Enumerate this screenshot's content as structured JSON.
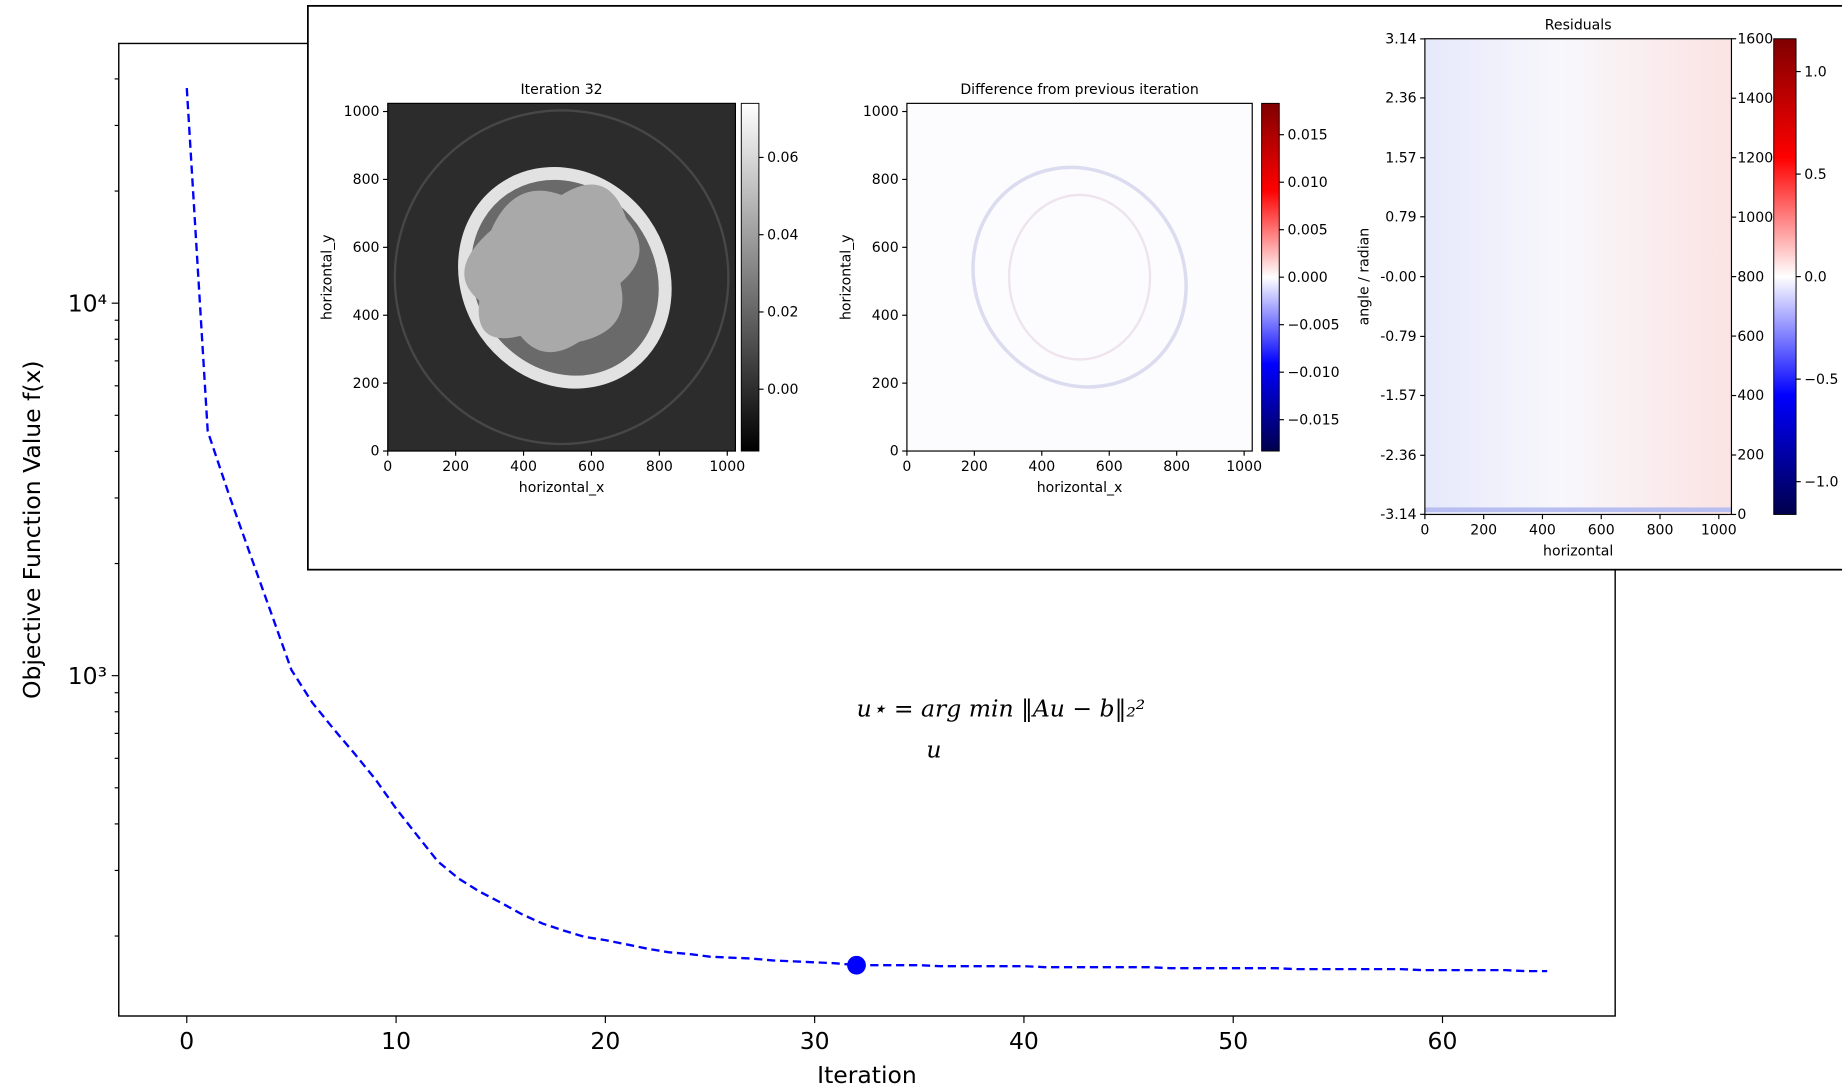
{
  "chart_data": [
    {
      "type": "line",
      "xlabel": "Iteration",
      "ylabel": "Objective Function Value f(x)",
      "x": [
        0,
        1,
        2,
        3,
        4,
        5,
        6,
        7,
        8,
        9,
        10,
        11,
        12,
        13,
        14,
        15,
        16,
        17,
        18,
        19,
        20,
        21,
        22,
        23,
        24,
        25,
        26,
        27,
        28,
        29,
        30,
        31,
        32,
        33,
        34,
        35,
        36,
        37,
        38,
        39,
        40,
        41,
        42,
        43,
        44,
        45,
        46,
        47,
        48,
        49,
        50,
        51,
        52,
        53,
        54,
        55,
        56,
        57,
        58,
        59,
        60,
        61,
        62,
        63,
        64,
        65
      ],
      "series": [
        {
          "color": "#0000ff",
          "linestyle": "dashed",
          "values": [
            37800,
            4530,
            3080,
            2140,
            1490,
            1036,
            846,
            721,
            619,
            528,
            440,
            373,
            317,
            285,
            263,
            246,
            229,
            216,
            207,
            199,
            195,
            190,
            185,
            181,
            179,
            176,
            175,
            174,
            172,
            171,
            170,
            169,
            167,
            167,
            167,
            167,
            166,
            166,
            166,
            166,
            166,
            165,
            165,
            165,
            165,
            165,
            165,
            164,
            164,
            164,
            164,
            164,
            164,
            163,
            163,
            163,
            163,
            163,
            163,
            162,
            162,
            162,
            162,
            162,
            161,
            161
          ]
        }
      ],
      "highlight_index": 32,
      "xlim": [
        -3.25,
        68.25
      ],
      "xticks": [
        0,
        10,
        20,
        30,
        40,
        50,
        60
      ],
      "ylim": [
        122,
        49800
      ],
      "log_y": true,
      "yticks": [
        {
          "value": 1000,
          "label": "10³"
        },
        {
          "value": 10000,
          "label": "10⁴"
        }
      ],
      "yticks_minor": [
        200,
        300,
        400,
        500,
        600,
        700,
        800,
        900,
        2000,
        3000,
        4000,
        5000,
        6000,
        7000,
        8000,
        9000,
        20000,
        30000,
        40000
      ],
      "annotation": "u⋆ = arg min ‖Au − b‖₂²",
      "annotation_subscript": "u"
    },
    {
      "type": "image",
      "title": "Iteration 32",
      "xlabel": "horizontal_x",
      "ylabel": "horizontal_y",
      "cmap": "gray",
      "xlim": [
        0,
        1024
      ],
      "xticks": [
        0,
        200,
        400,
        600,
        800,
        1000
      ],
      "ylim": [
        0,
        1024
      ],
      "yticks": [
        0,
        200,
        400,
        600,
        800,
        1000
      ],
      "clim": [
        -0.016,
        0.074
      ],
      "cticks": [
        {
          "value": 0,
          "label": "0.00"
        },
        0.02,
        0.04,
        0.06
      ]
    },
    {
      "type": "image",
      "title": "Difference from previous iteration",
      "xlabel": "horizontal_x",
      "ylabel": "horizontal_y",
      "cmap": "seismic",
      "xlim": [
        0,
        1024
      ],
      "xticks": [
        0,
        200,
        400,
        600,
        800,
        1000
      ],
      "ylim": [
        0,
        1024
      ],
      "yticks": [
        0,
        200,
        400,
        600,
        800,
        1000
      ],
      "clim": [
        -0.0183,
        0.0183
      ],
      "cticks": [
        0.015,
        {
          "value": 0.01,
          "label": "0.010"
        },
        0.005,
        {
          "value": 0,
          "label": "0.000"
        },
        {
          "value": -0.005,
          "label": "−0.005"
        },
        {
          "value": -0.01,
          "label": "−0.010"
        },
        {
          "value": -0.015,
          "label": "−0.015"
        }
      ]
    },
    {
      "type": "image",
      "title": "Residuals",
      "xlabel": "horizontal",
      "ylabel": "angle / radian",
      "cmap": "seismic",
      "xlim": [
        0,
        1043
      ],
      "xticks": [
        0,
        200,
        400,
        600,
        800,
        1000
      ],
      "ylim": [
        -3.1416,
        3.1416
      ],
      "yticks": [
        3.14,
        2.36,
        1.57,
        0.79,
        {
          "value": 0,
          "label": "-0.00"
        },
        -0.79,
        -1.57,
        -2.36,
        -3.14
      ],
      "y2lim": [
        0,
        1600
      ],
      "y2ticks": [
        0,
        200,
        400,
        600,
        800,
        1000,
        1200,
        1400,
        1600
      ],
      "clim": [
        -1.16,
        1.16
      ],
      "cticks": [
        {
          "value": 1,
          "label": "1.0"
        },
        0.5,
        {
          "value": 0,
          "label": "0.0"
        },
        {
          "value": -0.5,
          "label": "−0.5"
        },
        {
          "value": -1,
          "label": "−1.0"
        }
      ]
    }
  ]
}
